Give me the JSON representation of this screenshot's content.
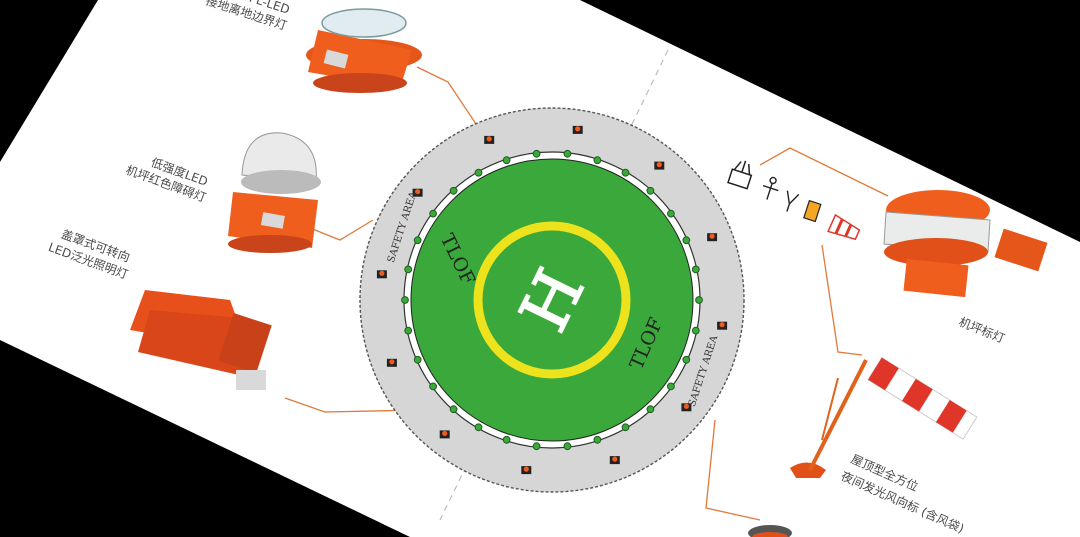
{
  "colors": {
    "background": "#000000",
    "panel": "#ffffff",
    "safety_area": "#d6d6d6",
    "tlof": "#3aa83a",
    "yellow_ring": "#ece31c",
    "light_orange": "#f05a1e",
    "leader_line": "#e07a3a"
  },
  "pad": {
    "letter": "H",
    "tlof_label_top": "TLOF",
    "tlof_label_bottom": "TLOF",
    "safety_label_top": "SAFETY AREA",
    "safety_label_bottom": "SAFETY AREA"
  },
  "products": {
    "opl_led": {
      "line1": "OPL-LED",
      "line2": "接地离地边界灯"
    },
    "low_intensity": {
      "line1": "低强度LED",
      "line2": "机坪红色障碍灯"
    },
    "floodlight": {
      "line1": "盖罩式可转向",
      "line2": "LED泛光照明灯"
    },
    "beacon": {
      "line1": "机坪标灯"
    },
    "windsock": {
      "line1": "屋顶型全方位",
      "line2": "夜间发光风向标 (含风袋)"
    }
  },
  "icons": [
    "beacon-icon",
    "obstacle-icon",
    "floodlight-icon",
    "flag-icon",
    "windsock-icon"
  ]
}
